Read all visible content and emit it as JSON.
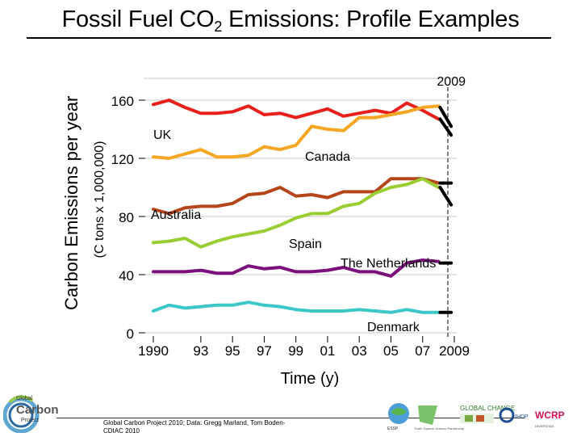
{
  "header": {
    "title_main": "Fossil Fuel CO",
    "title_sub": "2",
    "title_rest": " Emissions: Profile Examples"
  },
  "axis_labels": {
    "y_primary": "Carbon Emissions per year",
    "y_units": "(C tons x 1,000,000)"
  },
  "footer": {
    "credit_line1": "Global Carbon Project 2010; Data: Gregg Marland, Tom Boden-",
    "credit_line2": "CDIAC 2010",
    "logo_left_lines": [
      "Global",
      "Carbon",
      "Project"
    ],
    "partner_logos": [
      {
        "name": "esspp-logo",
        "text": "ESSP"
      },
      {
        "name": "future-earth-logo",
        "text": "Earth System Science Partnership"
      },
      {
        "name": "global-change-logo",
        "text": "GLOBAL CHANGE"
      },
      {
        "name": "ihdp-logo",
        "text": "IHDP"
      },
      {
        "name": "wcrp-logo",
        "text": "WCRP"
      },
      {
        "name": "diversitas-logo",
        "text": "DIVERSITAS"
      }
    ]
  },
  "chart_data": {
    "type": "line",
    "title": "Fossil Fuel CO2 Emissions: Profile Examples",
    "xlabel": "Time (y)",
    "ylabel": "Carbon Emissions per year (C tons x 1,000,000)",
    "xlim": [
      1990,
      2009
    ],
    "ylim": [
      0,
      180
    ],
    "x_ticks": [
      {
        "value": 1990,
        "label": "1990"
      },
      {
        "value": 1993,
        "label": "93"
      },
      {
        "value": 1995,
        "label": "95"
      },
      {
        "value": 1997,
        "label": "97"
      },
      {
        "value": 1999,
        "label": "99"
      },
      {
        "value": 2001,
        "label": "01"
      },
      {
        "value": 2003,
        "label": "03"
      },
      {
        "value": 2005,
        "label": "05"
      },
      {
        "value": 2007,
        "label": "07"
      },
      {
        "value": 2009,
        "label": "2009"
      }
    ],
    "y_ticks": [
      {
        "value": 0,
        "label": "0"
      },
      {
        "value": 40,
        "label": "40"
      },
      {
        "value": 80,
        "label": "80"
      },
      {
        "value": 120,
        "label": "120"
      },
      {
        "value": 160,
        "label": "160"
      }
    ],
    "marker_year": {
      "value": 2009,
      "label": "2009"
    },
    "x": [
      1990,
      1991,
      1992,
      1993,
      1994,
      1995,
      1996,
      1997,
      1998,
      1999,
      2000,
      2001,
      2002,
      2003,
      2004,
      2005,
      2006,
      2007,
      2008
    ],
    "series": [
      {
        "name": "UK",
        "label": "UK",
        "color": "#e8201c",
        "values": [
          157,
          160,
          155,
          151,
          151,
          152,
          156,
          150,
          151,
          148,
          151,
          154,
          149,
          151,
          153,
          151,
          158,
          153,
          147
        ],
        "projection": [
          2008.1,
          147,
          2008.8,
          136
        ]
      },
      {
        "name": "Canada",
        "label": "Canada",
        "color": "#f5a623",
        "values": [
          121,
          120,
          123,
          126,
          121,
          121,
          122,
          128,
          126,
          129,
          142,
          140,
          139,
          148,
          148,
          150,
          152,
          155,
          156
        ],
        "projection": [
          2008.1,
          155,
          2008.8,
          142
        ]
      },
      {
        "name": "Australia",
        "label": "Australia",
        "color": "#b5451b",
        "values": [
          85,
          82,
          86,
          87,
          87,
          89,
          95,
          96,
          100,
          94,
          95,
          93,
          97,
          97,
          97,
          106,
          106,
          106,
          103
        ],
        "projection": [
          2008.1,
          103,
          2008.8,
          103
        ]
      },
      {
        "name": "Spain",
        "label": "Spain",
        "color": "#9acd32",
        "values": [
          62,
          63,
          65,
          59,
          63,
          66,
          68,
          70,
          74,
          79,
          82,
          82,
          87,
          89,
          96,
          100,
          102,
          106,
          100
        ],
        "projection": [
          2008.1,
          100,
          2008.8,
          88
        ]
      },
      {
        "name": "The Netherlands",
        "label": "The Netherlands",
        "color": "#7b0f7b",
        "values": [
          42,
          42,
          42,
          43,
          41,
          41,
          46,
          44,
          45,
          42,
          42,
          43,
          45,
          42,
          42,
          39,
          48,
          50,
          49
        ],
        "projection": [
          2008.1,
          48,
          2008.8,
          48
        ]
      },
      {
        "name": "Denmark",
        "label": "Denmark",
        "color": "#3cc8c8",
        "values": [
          15,
          19,
          17,
          18,
          19,
          19,
          21,
          19,
          18,
          16,
          15,
          15,
          15,
          16,
          15,
          14,
          16,
          14,
          14
        ],
        "projection": [
          2008.1,
          14,
          2008.8,
          14
        ]
      }
    ]
  }
}
